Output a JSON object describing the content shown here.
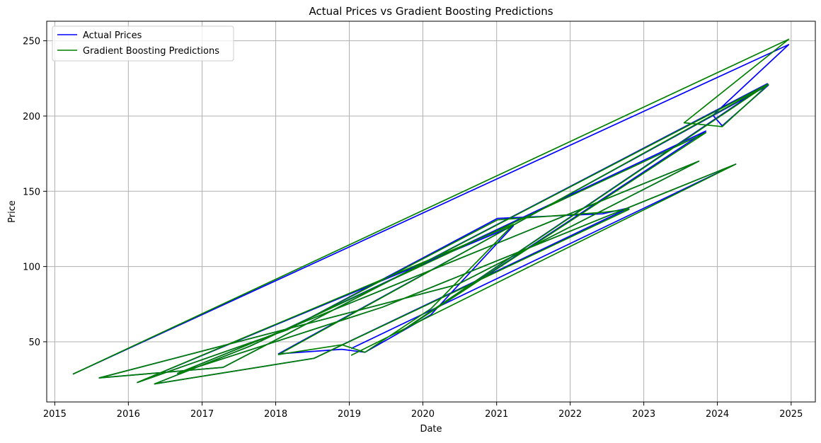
{
  "chart_data": {
    "type": "line",
    "title": "Actual Prices vs Gradient Boosting Predictions",
    "xlabel": "Date",
    "ylabel": "Price",
    "x_axis_type": "date",
    "xlim": [
      "2014-11-22",
      "2025-05-01"
    ],
    "ylim": [
      10,
      263
    ],
    "x_ticks": [
      "2015",
      "2016",
      "2017",
      "2018",
      "2019",
      "2020",
      "2021",
      "2022",
      "2023",
      "2024",
      "2025"
    ],
    "y_ticks": [
      50,
      100,
      150,
      200,
      250
    ],
    "grid": true,
    "legend_position": "top-left",
    "colors": {
      "actual": "#0000ff",
      "predicted": "#008000",
      "grid": "#b0b0b0"
    },
    "series": [
      {
        "name": "Actual Prices",
        "color": "#0000ff",
        "points": [
          [
            "2015-04-01",
            28.5
          ],
          [
            "2024-12-20",
            247.5
          ],
          [
            "2023-12-10",
            200.5
          ],
          [
            "2024-01-25",
            193.5
          ],
          [
            "2024-09-10",
            220.5
          ],
          [
            "2018-01-15",
            42.0
          ],
          [
            "2018-11-25",
            45.0
          ],
          [
            "2019-03-20",
            43.0
          ],
          [
            "2020-02-10",
            68.0
          ],
          [
            "2021-03-25",
            127.0
          ],
          [
            "2016-02-15",
            23.0
          ],
          [
            "2018-03-01",
            58.0
          ],
          [
            "2021-01-05",
            132.0
          ],
          [
            "2022-06-10",
            135.0
          ],
          [
            "2022-10-20",
            139.0
          ],
          [
            "2018-07-10",
            39.0
          ],
          [
            "2016-05-10",
            22.0
          ],
          [
            "2017-08-25",
            47.0
          ],
          [
            "2023-11-05",
            190.0
          ],
          [
            "2019-09-05",
            56.0
          ],
          [
            "2024-09-05",
            221.5
          ],
          [
            "2017-04-15",
            33.0
          ],
          [
            "2015-08-10",
            26.0
          ],
          [
            "2020-06-20",
            88.0
          ],
          [
            "2023-10-01",
            170.0
          ],
          [
            "2016-09-01",
            29.0
          ],
          [
            "2019-06-15",
            73.0
          ],
          [
            "2024-04-01",
            168.0
          ],
          [
            "2019-01-10",
            45.5
          ]
        ]
      },
      {
        "name": "Gradient Boosting Predictions",
        "color": "#008000",
        "points": [
          [
            "2015-04-01",
            28.5
          ],
          [
            "2024-12-20",
            251.0
          ],
          [
            "2023-07-20",
            195.5
          ],
          [
            "2024-01-25",
            193.0
          ],
          [
            "2024-09-10",
            221.0
          ],
          [
            "2018-01-15",
            41.5
          ],
          [
            "2018-11-25",
            48.0
          ],
          [
            "2019-03-20",
            43.0
          ],
          [
            "2020-02-10",
            72.0
          ],
          [
            "2021-03-25",
            128.0
          ],
          [
            "2016-02-15",
            23.0
          ],
          [
            "2018-03-01",
            58.0
          ],
          [
            "2021-01-05",
            131.0
          ],
          [
            "2022-06-10",
            136.0
          ],
          [
            "2022-10-20",
            138.0
          ],
          [
            "2018-07-10",
            39.0
          ],
          [
            "2016-05-10",
            22.0
          ],
          [
            "2017-08-25",
            47.0
          ],
          [
            "2023-11-05",
            189.0
          ],
          [
            "2019-09-05",
            56.0
          ],
          [
            "2024-09-05",
            221.0
          ],
          [
            "2017-04-15",
            33.0
          ],
          [
            "2015-08-10",
            26.0
          ],
          [
            "2020-06-20",
            88.0
          ],
          [
            "2023-10-01",
            170.0
          ],
          [
            "2016-09-01",
            29.0
          ],
          [
            "2019-06-15",
            73.0
          ],
          [
            "2024-04-01",
            168.0
          ],
          [
            "2019-01-10",
            41.0
          ]
        ]
      }
    ]
  }
}
